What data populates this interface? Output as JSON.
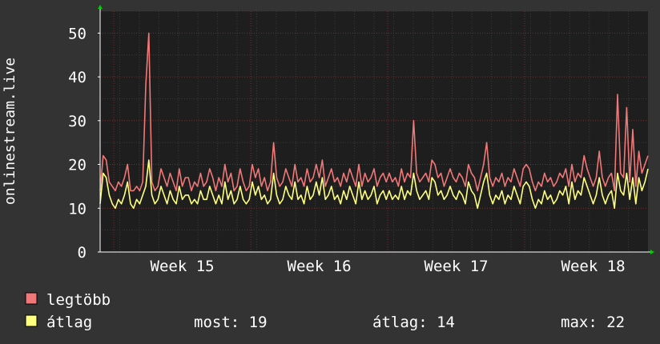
{
  "chart_data": {
    "type": "line",
    "ylabel": "onlinestream.live",
    "ylim": [
      0,
      55
    ],
    "yticks": [
      0,
      10,
      20,
      30,
      40,
      50
    ],
    "x_ticks": [
      {
        "label": "Week 15",
        "week": 15
      },
      {
        "label": "Week 16",
        "week": 16
      },
      {
        "label": "Week 17",
        "week": 17
      },
      {
        "label": "Week 18",
        "week": 18
      }
    ],
    "x_range_weeks": [
      14.4,
      18.4
    ],
    "grid": true,
    "colors": {
      "background": "#333333",
      "canvas": "#1e1e1e",
      "grid_minor": "#3a3a3a",
      "grid_major": "#7a2c2c",
      "axis_arrow": "#00cc00",
      "max_line": "#f07878",
      "avg_line": "#ffff80"
    },
    "series": [
      {
        "name": "legtöbb",
        "color": "#f07878",
        "values": [
          14,
          22,
          21,
          16,
          15,
          14,
          16,
          15,
          17,
          20,
          14,
          14,
          15,
          14,
          16,
          38,
          50,
          16,
          14,
          15,
          19,
          17,
          15,
          18,
          16,
          14,
          19,
          15,
          17,
          17,
          14,
          16,
          15,
          18,
          15,
          16,
          19,
          17,
          14,
          17,
          15,
          20,
          16,
          18,
          14,
          15,
          19,
          16,
          14,
          15,
          20,
          17,
          19,
          15,
          17,
          14,
          16,
          25,
          17,
          15,
          16,
          19,
          17,
          15,
          20,
          16,
          17,
          15,
          19,
          16,
          17,
          20,
          17,
          21,
          15,
          17,
          19,
          16,
          17,
          15,
          18,
          16,
          19,
          17,
          15,
          20,
          15,
          18,
          16,
          17,
          19,
          15,
          17,
          18,
          16,
          18,
          16,
          17,
          15,
          19,
          16,
          18,
          17,
          30,
          18,
          16,
          17,
          18,
          16,
          21,
          20,
          17,
          18,
          15,
          17,
          19,
          17,
          16,
          18,
          17,
          15,
          20,
          18,
          17,
          14,
          17,
          20,
          25,
          17,
          15,
          17,
          16,
          18,
          15,
          17,
          16,
          19,
          17,
          15,
          19,
          20,
          19,
          16,
          14,
          16,
          15,
          18,
          16,
          17,
          15,
          16,
          18,
          17,
          19,
          15,
          20,
          16,
          18,
          17,
          22,
          19,
          17,
          15,
          17,
          23,
          17,
          15,
          17,
          18,
          14,
          36,
          18,
          17,
          33,
          16,
          28,
          15,
          23,
          18,
          20,
          22
        ]
      },
      {
        "name": "átlag",
        "color": "#ffff80",
        "values": [
          11,
          18,
          17,
          13,
          11,
          10,
          12,
          11,
          13,
          16,
          11,
          10,
          12,
          11,
          13,
          15,
          21,
          13,
          11,
          12,
          15,
          13,
          11,
          14,
          12,
          11,
          15,
          12,
          13,
          13,
          11,
          12,
          11,
          14,
          12,
          12,
          15,
          13,
          11,
          13,
          11,
          16,
          12,
          14,
          11,
          12,
          15,
          12,
          11,
          12,
          16,
          13,
          15,
          12,
          13,
          11,
          12,
          18,
          13,
          11,
          12,
          15,
          13,
          12,
          16,
          12,
          13,
          11,
          15,
          12,
          13,
          16,
          13,
          17,
          12,
          13,
          15,
          12,
          13,
          11,
          14,
          12,
          15,
          13,
          11,
          16,
          12,
          14,
          12,
          13,
          15,
          11,
          13,
          14,
          12,
          14,
          12,
          13,
          12,
          15,
          12,
          14,
          13,
          18,
          14,
          12,
          13,
          14,
          12,
          17,
          16,
          13,
          14,
          12,
          13,
          15,
          13,
          12,
          14,
          13,
          11,
          16,
          14,
          13,
          10,
          13,
          16,
          18,
          13,
          11,
          13,
          12,
          14,
          11,
          13,
          12,
          15,
          13,
          11,
          15,
          16,
          15,
          12,
          10,
          12,
          11,
          14,
          12,
          13,
          11,
          12,
          14,
          13,
          15,
          11,
          16,
          12,
          14,
          13,
          17,
          15,
          13,
          11,
          13,
          17,
          13,
          11,
          13,
          14,
          10,
          18,
          14,
          13,
          18,
          12,
          17,
          11,
          17,
          14,
          16,
          19
        ]
      }
    ]
  },
  "legend": {
    "max_label": "legtöbb",
    "avg_label": "átlag",
    "stats": {
      "now": "most: 19",
      "avg": "átlag: 14",
      "max": "max: 22"
    }
  }
}
